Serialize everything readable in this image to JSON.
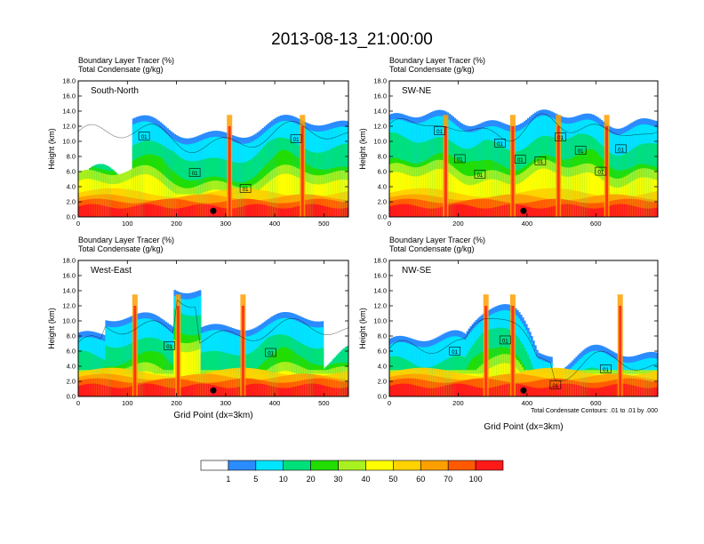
{
  "figure": {
    "title": "2013-08-13_21:00:00",
    "xaxis_label": "Grid Point (dx=3km)",
    "yaxis_label": "Height (km)",
    "contour_note": "Total Condensate Contours: .01 to .01 by .000"
  },
  "colors": {
    "levels": [
      "#ffffff",
      "#2b8cff",
      "#00e5ff",
      "#00e07a",
      "#22dd00",
      "#a8f020",
      "#ffff00",
      "#ffd200",
      "#ffa000",
      "#ff5a00",
      "#ff1a1a"
    ],
    "colorbar_labels": [
      "1",
      "5",
      "10",
      "20",
      "30",
      "40",
      "50",
      "60",
      "70",
      "100"
    ]
  },
  "chart_data": [
    {
      "type": "heatmap",
      "title": "South-North",
      "line1": "Boundary Layer Tracer   (%)",
      "line2": "Total Condensate   (g/kg)",
      "xlim": [
        0,
        550
      ],
      "xticks": [
        "0",
        "100",
        "200",
        "300",
        "400",
        "500"
      ],
      "ylim": [
        0,
        18
      ],
      "yticks": [
        "0.0",
        "2.0",
        "4.0",
        "6.0",
        "8.0",
        "10.0",
        "12.0",
        "14.0",
        "16.0",
        "18.0"
      ],
      "contour_labels": [
        "01",
        "01",
        "01",
        "01"
      ],
      "marker_x": 275
    },
    {
      "type": "heatmap",
      "title": "SW-NE",
      "line1": "Boundary Layer Tracer   (%)",
      "line2": "Total Condensate   (g/kg)",
      "xlim": [
        0,
        780
      ],
      "xticks": [
        "0",
        "200",
        "400",
        "600"
      ],
      "ylim": [
        0,
        18
      ],
      "yticks": [
        "0.0",
        "2.0",
        "4.0",
        "6.0",
        "8.0",
        "10.0",
        "12.0",
        "14.0",
        "16.0",
        "18.0"
      ],
      "contour_labels": [
        "01",
        "01",
        "01",
        "01",
        "01",
        "01",
        "01",
        "01",
        "01",
        "01"
      ],
      "marker_x": 390
    },
    {
      "type": "heatmap",
      "title": "West-East",
      "line1": "Boundary Layer Tracer   (%)",
      "line2": "Total Condensate   (g/kg)",
      "xlim": [
        0,
        550
      ],
      "xticks": [
        "0",
        "100",
        "200",
        "300",
        "400",
        "500"
      ],
      "ylim": [
        0,
        18
      ],
      "yticks": [
        "0.0",
        "2.0",
        "4.0",
        "6.0",
        "8.0",
        "10.0",
        "12.0",
        "14.0",
        "16.0",
        "18.0"
      ],
      "contour_labels": [
        "01",
        "01"
      ],
      "marker_x": 275
    },
    {
      "type": "heatmap",
      "title": "NW-SE",
      "line1": "Boundary Layer Tracer   (%)",
      "line2": "Total Condensate   (g/kg)",
      "xlim": [
        0,
        780
      ],
      "xticks": [
        "0",
        "200",
        "400",
        "600"
      ],
      "ylim": [
        0,
        18
      ],
      "yticks": [
        "0.0",
        "2.0",
        "4.0",
        "6.0",
        "8.0",
        "10.0",
        "12.0",
        "14.0",
        "16.0",
        "18.0"
      ],
      "contour_labels": [
        "01",
        "01",
        "01",
        "01"
      ],
      "marker_x": 390
    }
  ]
}
